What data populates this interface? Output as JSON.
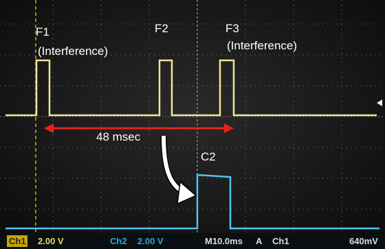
{
  "labels": {
    "f1": "F1",
    "f1_note": "(Interference)",
    "f2": "F2",
    "f3": "F3",
    "f3_note": "(Interference)",
    "interval": "48 msec",
    "c2": "C2"
  },
  "status_bar": {
    "ch1": "Ch1",
    "ch1_scale": "2.00 V",
    "ch2": "Ch2",
    "ch2_scale": "2.00 V",
    "timebase": "M10.0ms",
    "trigger_mode": "A",
    "trigger_source": "Ch1",
    "trigger_level": "640mV"
  }
}
